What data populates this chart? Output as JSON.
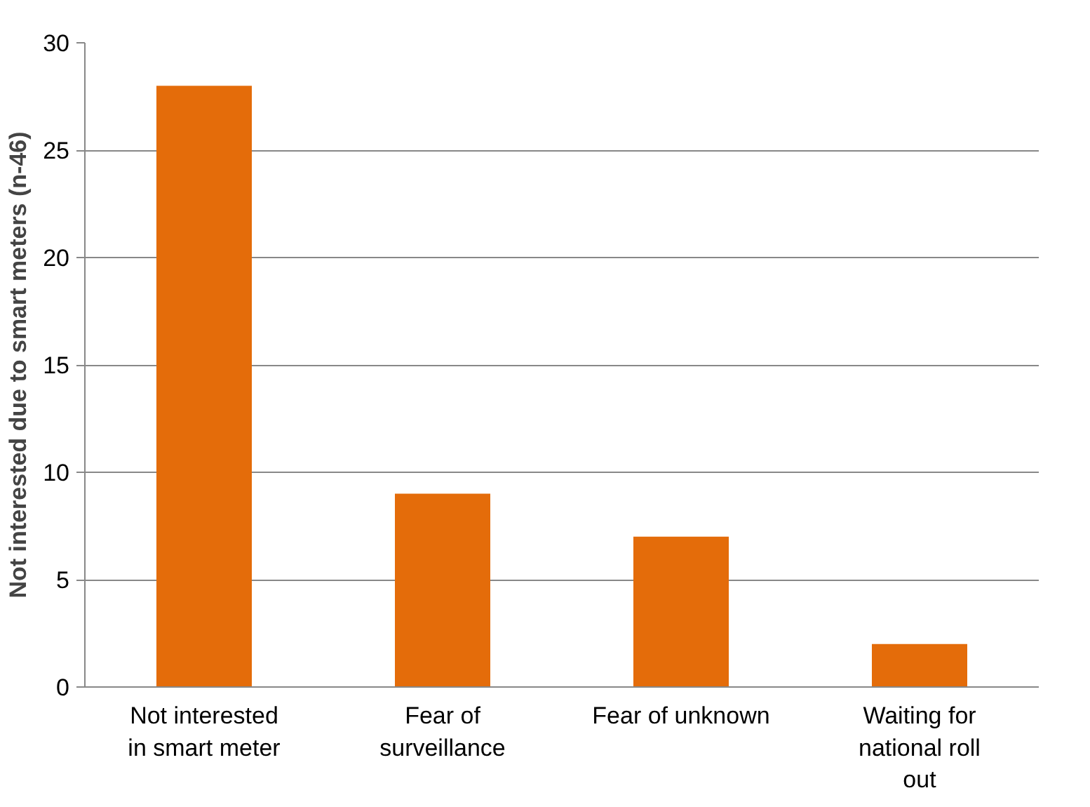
{
  "chart_data": {
    "type": "bar",
    "ylabel": "Not interested due to smart meters (n-46)",
    "categories": [
      "Not interested in smart meter",
      "Fear of surveillance",
      "Fear of unknown",
      "Waiting for national roll out"
    ],
    "values": [
      28,
      9,
      7,
      2
    ],
    "color": "#e46c0a",
    "ylim": [
      0,
      30
    ],
    "yticks": [
      0,
      5,
      10,
      15,
      20,
      25,
      30
    ],
    "grid": "y"
  }
}
